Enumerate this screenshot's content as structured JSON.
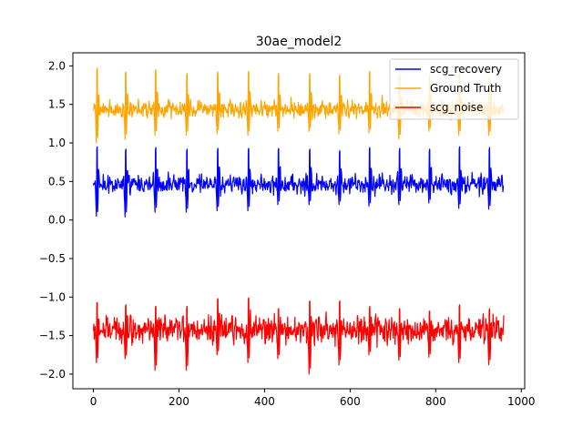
{
  "chart_data": {
    "type": "line",
    "title": "30ae_model2",
    "xlabel": "",
    "ylabel": "",
    "xlim": [
      -48,
      1008
    ],
    "ylim": [
      -2.19,
      2.17
    ],
    "xticks": [
      0,
      200,
      400,
      600,
      800,
      1000
    ],
    "xtick_labels": [
      "0",
      "200",
      "400",
      "600",
      "800",
      "1000"
    ],
    "yticks": [
      -2.0,
      -1.5,
      -1.0,
      -0.5,
      0.0,
      0.5,
      1.0,
      1.5,
      2.0
    ],
    "ytick_labels": [
      "−2.0",
      "−1.5",
      "−1.0",
      "−0.5",
      "0.0",
      "0.5",
      "1.0",
      "1.5",
      "2.0"
    ],
    "grid": false,
    "legend_position": "top-right",
    "n_points": 960,
    "series": [
      {
        "name": "scg_recovery",
        "color": "#0000ff",
        "baseline": 0.46,
        "beats_at": [
          8,
          75,
          145,
          218,
          290,
          362,
          432,
          505,
          575,
          645,
          715,
          785,
          855,
          925
        ],
        "peak_values": [
          0.95,
          0.92,
          0.94,
          0.92,
          0.93,
          0.93,
          0.93,
          0.92,
          0.9,
          0.94,
          0.93,
          0.92,
          0.95,
          0.94
        ],
        "trough_values": [
          0.05,
          0.04,
          0.1,
          0.1,
          0.12,
          0.12,
          0.2,
          0.2,
          0.2,
          0.18,
          0.2,
          0.22,
          0.15,
          0.14
        ],
        "ripple": 0.08
      },
      {
        "name": "Ground Truth",
        "color": "#ffa500",
        "baseline": 1.43,
        "beats_at": [
          8,
          75,
          145,
          218,
          290,
          362,
          432,
          505,
          575,
          645,
          715,
          785,
          855,
          925
        ],
        "peak_values": [
          1.97,
          1.92,
          1.95,
          1.9,
          1.92,
          1.93,
          1.9,
          1.9,
          1.88,
          1.93,
          1.9,
          1.88,
          1.93,
          1.85
        ],
        "trough_values": [
          1.0,
          1.05,
          1.1,
          1.1,
          1.12,
          1.1,
          1.15,
          1.15,
          1.12,
          1.13,
          1.05,
          1.15,
          1.1,
          1.1
        ],
        "ripple": 0.07
      },
      {
        "name": "scg_noise",
        "color": "#ff0000",
        "baseline": -1.42,
        "beats_at": [
          8,
          75,
          145,
          218,
          290,
          362,
          432,
          505,
          575,
          645,
          715,
          785,
          855,
          925
        ],
        "peak_values": [
          -1.07,
          -1.1,
          -1.12,
          -1.12,
          -1.02,
          -1.01,
          -1.15,
          -1.05,
          -1.05,
          -1.12,
          -1.15,
          -1.18,
          -1.1,
          -1.15
        ],
        "trough_values": [
          -1.85,
          -1.8,
          -1.95,
          -1.95,
          -1.75,
          -1.85,
          -1.8,
          -2.0,
          -1.88,
          -1.75,
          -1.82,
          -1.78,
          -1.85,
          -1.88
        ],
        "ripple": 0.12
      }
    ]
  }
}
